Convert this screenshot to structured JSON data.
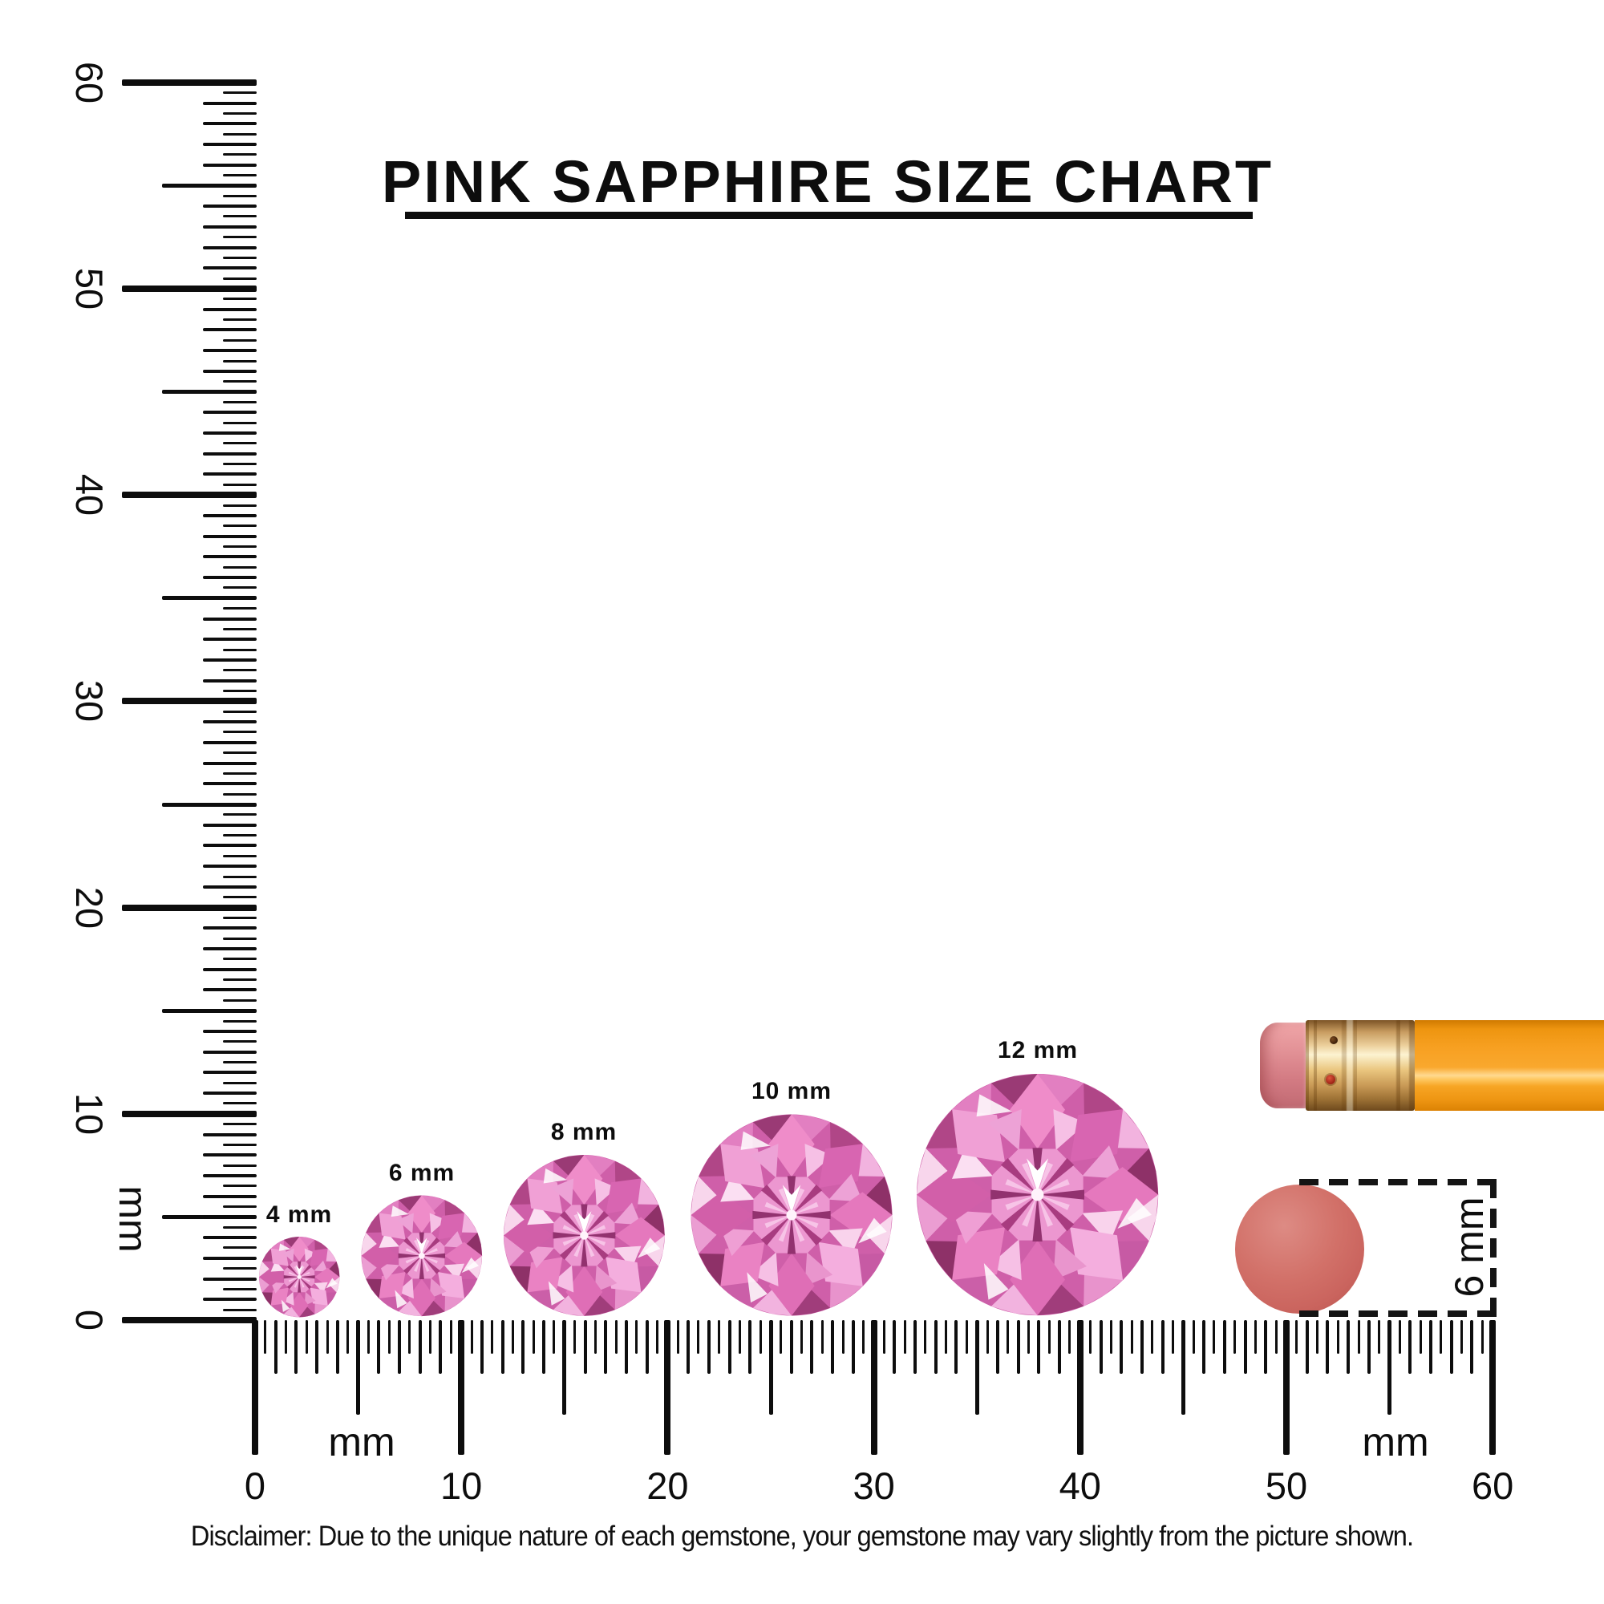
{
  "title": {
    "text": "PINK SAPPHIRE SIZE CHART"
  },
  "rulers": {
    "vertical": {
      "unit": "mm",
      "tick_labels": [
        "0",
        "10",
        "20",
        "30",
        "40",
        "50",
        "60"
      ],
      "range_mm": [
        0,
        60
      ]
    },
    "horizontal": {
      "unit": "mm",
      "tick_labels": [
        "0",
        "10",
        "20",
        "30",
        "40",
        "50",
        "60"
      ],
      "range_mm": [
        0,
        60
      ]
    }
  },
  "gems": [
    {
      "label": "4 mm",
      "size_mm": 4
    },
    {
      "label": "6 mm",
      "size_mm": 6
    },
    {
      "label": "8 mm",
      "size_mm": 8
    },
    {
      "label": "10 mm",
      "size_mm": 10
    },
    {
      "label": "12 mm",
      "size_mm": 12
    }
  ],
  "eraser_measure": {
    "label": "6 mm",
    "size_mm": 6
  },
  "disclaimer": "Disclaimer: Due to the unique nature of each gemstone, your gemstone may vary slightly from the picture shown.",
  "colors": {
    "ink": "#0d0d0d",
    "gem_pink": "#ee8fcb",
    "gem_dark": "#b14a8b",
    "eraser_disc": "#d27169",
    "pencil_orange": "#f7a021",
    "pencil_eraser": "#e29196",
    "ferrule_gold": "#eac67f"
  }
}
